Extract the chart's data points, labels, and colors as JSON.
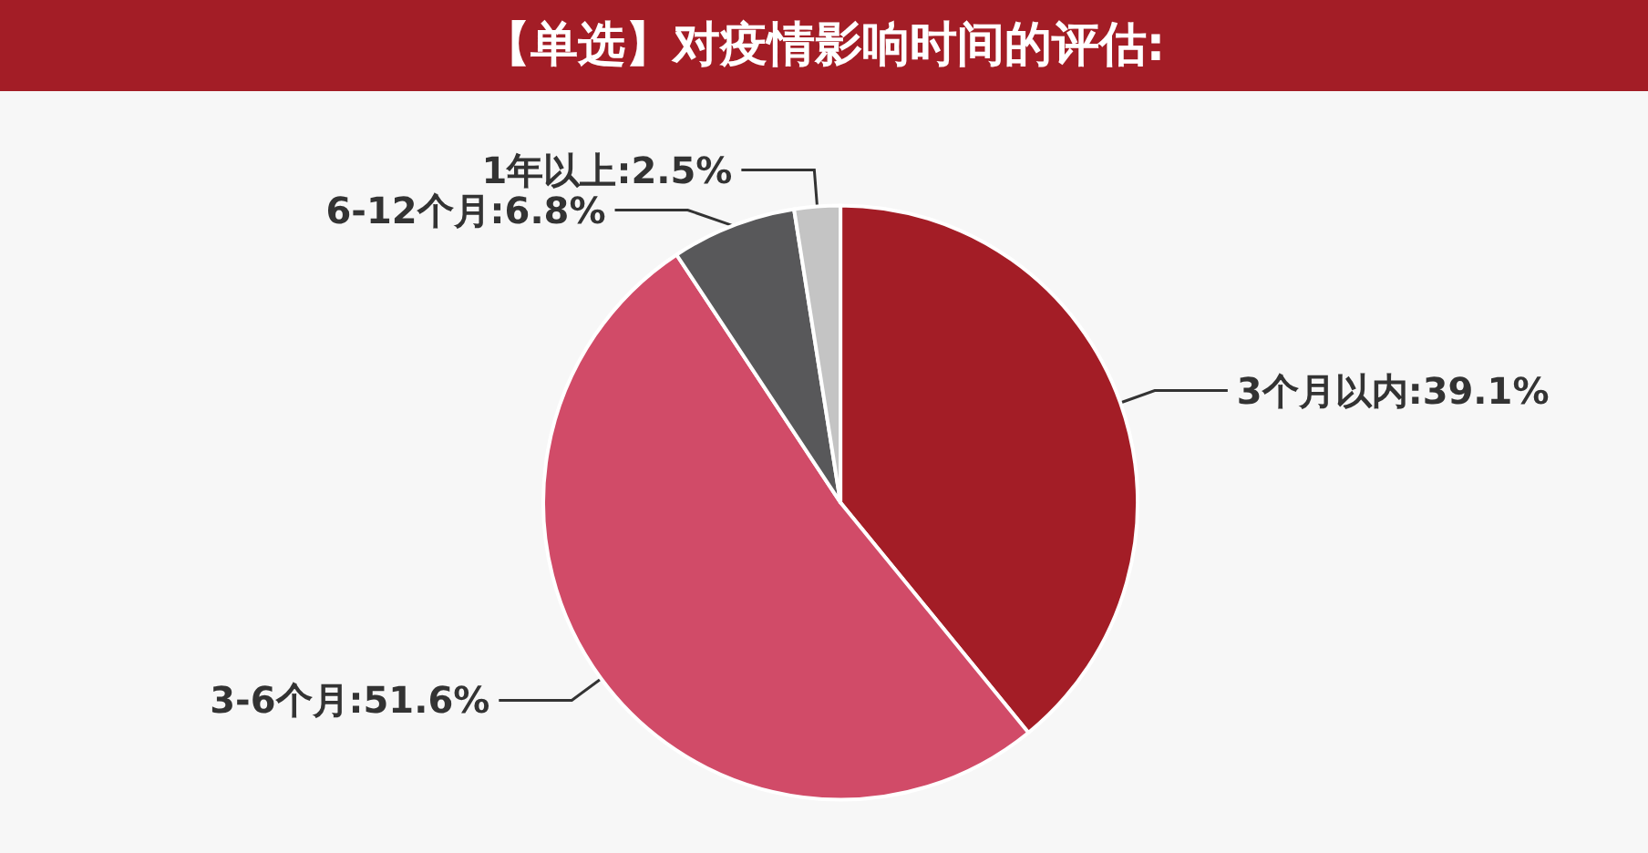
{
  "chart_data": {
    "type": "pie",
    "title": "【单选】对疫情影响时间的评估:",
    "categories": [
      "3个月以内",
      "3-6个月",
      "6-12个月",
      "1年以上"
    ],
    "values": [
      39.1,
      51.6,
      6.8,
      2.5
    ],
    "colors": [
      "#a31d26",
      "#d14b68",
      "#58585a",
      "#c4c4c4"
    ],
    "value_labels": [
      "39.1%",
      "51.6%",
      "6.8%",
      "2.5%"
    ],
    "legend": false
  }
}
